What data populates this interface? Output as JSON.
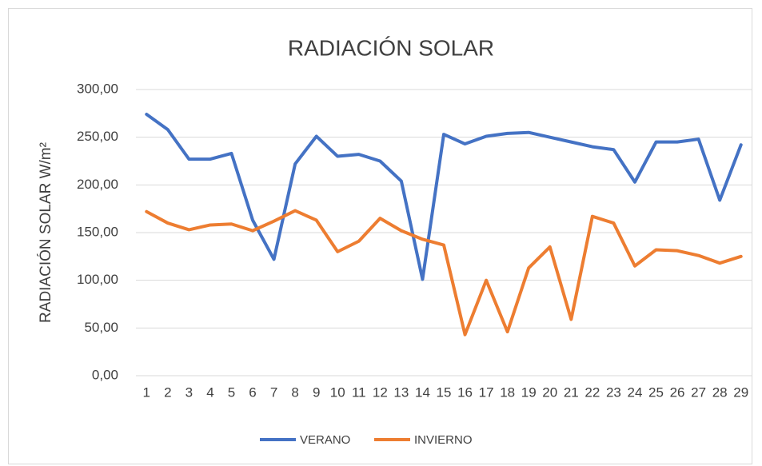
{
  "chart_data": {
    "type": "line",
    "title": "RADIACIÓN SOLAR",
    "y_label": "RADIACIÓN SOLAR W/m²",
    "categories": [
      "1",
      "2",
      "3",
      "4",
      "5",
      "6",
      "7",
      "8",
      "9",
      "10",
      "11",
      "12",
      "13",
      "14",
      "15",
      "16",
      "17",
      "18",
      "19",
      "20",
      "21",
      "22",
      "23",
      "24",
      "25",
      "26",
      "27",
      "28",
      "29"
    ],
    "series": [
      {
        "name": "VERANO",
        "color": "#4472c4",
        "values": [
          274,
          258,
          227,
          227,
          233,
          163,
          122,
          222,
          251,
          230,
          232,
          225,
          204,
          101,
          253,
          243,
          251,
          254,
          255,
          250,
          245,
          240,
          237,
          203,
          245,
          245,
          248,
          184,
          242
        ]
      },
      {
        "name": "INVIERNO",
        "color": "#ed7d31",
        "values": [
          172,
          160,
          153,
          158,
          159,
          152,
          162,
          173,
          163,
          130,
          141,
          165,
          152,
          143,
          137,
          43,
          100,
          46,
          113,
          135,
          59,
          167,
          160,
          115,
          132,
          131,
          126,
          118,
          125
        ]
      }
    ],
    "ylim": [
      0,
      300
    ],
    "yticks": [
      {
        "value": 0,
        "label": "0,00"
      },
      {
        "value": 50,
        "label": "50,00"
      },
      {
        "value": 100,
        "label": "100,00"
      },
      {
        "value": 150,
        "label": "150,00"
      },
      {
        "value": 200,
        "label": "200,00"
      },
      {
        "value": 250,
        "label": "250,00"
      },
      {
        "value": 300,
        "label": "300,00"
      }
    ],
    "grid": true,
    "legend": "bottom"
  }
}
